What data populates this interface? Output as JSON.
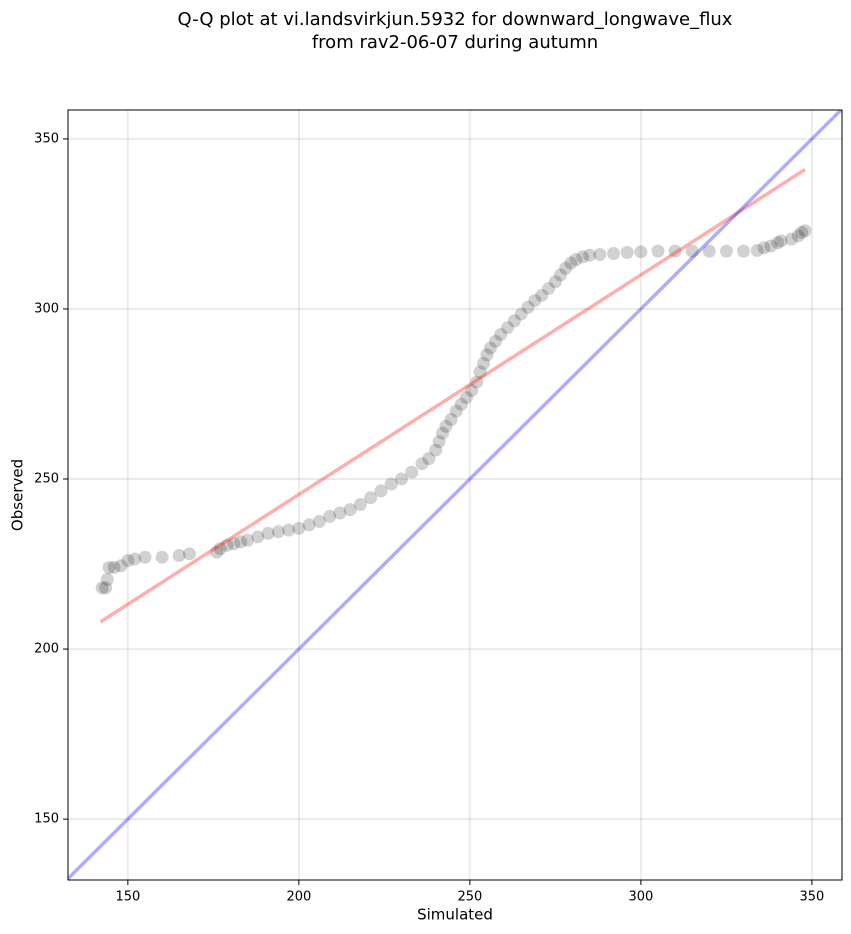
{
  "chart_data": {
    "type": "scatter",
    "title": [
      "Q-Q plot at vi.landsvirkjun.5932 for downward_longwave_flux",
      "from rav2-06-07 during autumn"
    ],
    "xlabel": "Simulated",
    "ylabel": "Observed",
    "xlim": [
      132.5,
      358.8
    ],
    "ylim": [
      132.1,
      358.5
    ],
    "xticks": [
      150,
      200,
      250,
      300,
      350
    ],
    "yticks": [
      150,
      200,
      250,
      300,
      350
    ],
    "grid": true,
    "color": "#000000",
    "alpha": 0.18,
    "x": [
      142.5,
      143.5,
      144,
      144.5,
      146,
      148,
      150,
      152,
      155,
      160,
      165,
      168,
      176,
      177,
      179,
      181,
      183,
      185,
      188,
      191,
      194,
      197,
      200,
      203,
      206,
      209,
      212,
      215,
      218,
      221,
      224,
      227,
      230,
      233,
      236,
      238,
      240,
      241,
      242,
      243,
      244.5,
      246,
      247.5,
      249,
      250.5,
      252,
      253,
      254,
      255,
      256,
      257.5,
      259,
      261,
      263,
      265,
      267,
      269,
      271,
      273,
      275,
      276.5,
      278,
      279.5,
      281,
      283,
      285,
      288,
      292,
      296,
      300,
      305,
      310,
      315,
      320,
      325,
      330,
      334,
      336,
      338,
      340,
      341,
      344,
      346,
      347,
      348
    ],
    "y": [
      218,
      218,
      220.5,
      224,
      224,
      224.5,
      226,
      226.5,
      227,
      227,
      227.5,
      228,
      228.5,
      229.5,
      230.5,
      231,
      231.5,
      232,
      233,
      234,
      234.5,
      235,
      235.5,
      236.5,
      237.5,
      239,
      240,
      241,
      242.5,
      244.5,
      246.5,
      248.5,
      250,
      252,
      254.5,
      256,
      258.5,
      261,
      263.5,
      265.5,
      267.5,
      270,
      272,
      274,
      276,
      278.5,
      281.5,
      284,
      286.5,
      288.5,
      290.5,
      292.5,
      294.5,
      296.5,
      298.5,
      300.5,
      302.5,
      304,
      306,
      308,
      310,
      312,
      313.5,
      314.5,
      315.3,
      315.8,
      316,
      316.3,
      316.6,
      316.8,
      317,
      317,
      317,
      317,
      317,
      317,
      317.2,
      318,
      318.5,
      319.5,
      320,
      320.5,
      321.5,
      322.5,
      323
    ],
    "fit_line": {
      "x": [
        142,
        348
      ],
      "y": [
        208,
        341
      ],
      "color": "#ff0000"
    },
    "identity_line": {
      "color": "#0000ff"
    }
  }
}
